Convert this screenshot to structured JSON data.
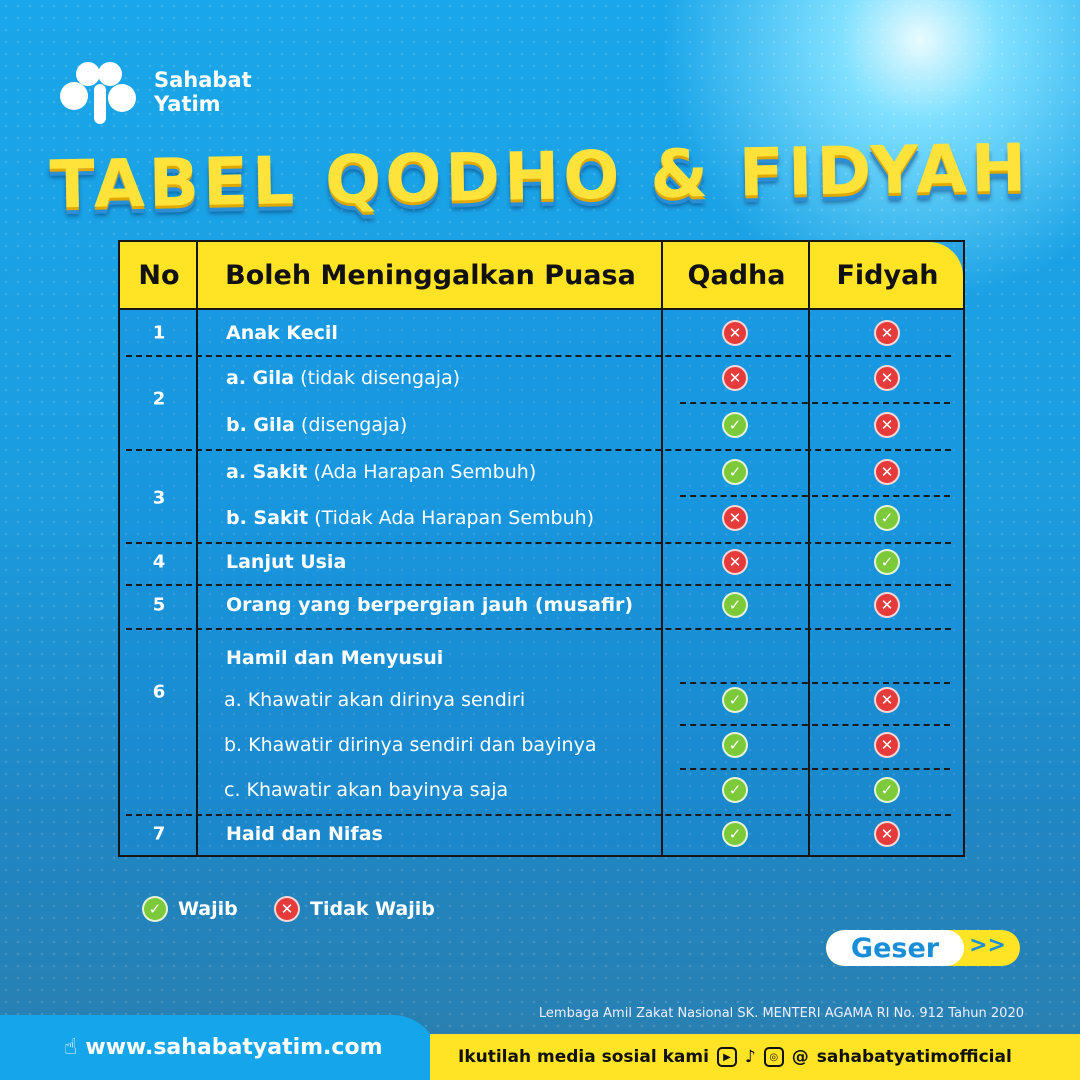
{
  "brand": {
    "name_line1": "Sahabat",
    "name_line2": "Yatim"
  },
  "title": "TABEL QODHO & FIDYAH",
  "colors": {
    "header": "#ffe325",
    "wajib": "#7cc93a",
    "tidak_wajib": "#e53b3b"
  },
  "table": {
    "headers": [
      "No",
      "Boleh Meninggalkan Puasa",
      "Qadha",
      "Fidyah"
    ],
    "numbers": [
      "1",
      "2",
      "3",
      "4",
      "5",
      "6",
      "7"
    ],
    "rows": [
      {
        "bold": "Anak Kecil",
        "rest": "",
        "qadha": "x",
        "fidyah": "x"
      },
      {
        "bold": "a. Gila",
        "rest": "(tidak disengaja)",
        "qadha": "x",
        "fidyah": "x"
      },
      {
        "bold": "b. Gila",
        "rest": "(disengaja)",
        "qadha": "check",
        "fidyah": "x"
      },
      {
        "bold": "a. Sakit",
        "rest": "(Ada Harapan Sembuh)",
        "qadha": "check",
        "fidyah": "x"
      },
      {
        "bold": "b. Sakit",
        "rest": "(Tidak Ada Harapan Sembuh)",
        "qadha": "x",
        "fidyah": "check"
      },
      {
        "bold": "Lanjut Usia",
        "rest": "",
        "qadha": "x",
        "fidyah": "check"
      },
      {
        "bold": "Orang yang berpergian jauh (musafir)",
        "rest": "",
        "qadha": "check",
        "fidyah": "x"
      },
      {
        "bold": "Hamil dan Menyusui",
        "rest": "",
        "qadha": "",
        "fidyah": ""
      },
      {
        "bold": "",
        "rest": "a. Khawatir akan dirinya sendiri",
        "qadha": "check",
        "fidyah": "x"
      },
      {
        "bold": "",
        "rest": "b. Khawatir dirinya sendiri dan bayinya",
        "qadha": "check",
        "fidyah": "x"
      },
      {
        "bold": "",
        "rest": "c. Khawatir akan bayinya saja",
        "qadha": "check",
        "fidyah": "check"
      },
      {
        "bold": "Haid dan Nifas",
        "rest": "",
        "qadha": "check",
        "fidyah": "x"
      }
    ]
  },
  "legend": {
    "wajib": "Wajib",
    "tidak_wajib": "Tidak Wajib"
  },
  "geser": {
    "label": "Geser",
    "arrow": ">>"
  },
  "license": "Lembaga Amil Zakat Nasional SK. MENTERI AGAMA RI No. 912 Tahun 2020",
  "footer": {
    "website": "www.sahabatyatim.com",
    "follow": "Ikutilah media sosial kami",
    "handle": "sahabatyatimofficial"
  }
}
